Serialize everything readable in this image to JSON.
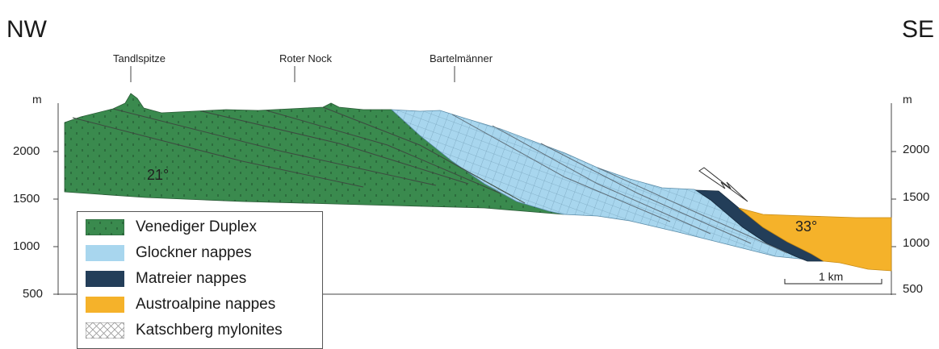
{
  "directions": {
    "left": "NW",
    "right": "SE"
  },
  "peaks": [
    {
      "label": "Tandlspitze"
    },
    {
      "label": "Roter Nock"
    },
    {
      "label": "Bartelmänner"
    }
  ],
  "axes": {
    "left": {
      "unit": "m",
      "ticks": [
        "2000",
        "1500",
        "1000",
        "500"
      ]
    },
    "right": {
      "unit": "m",
      "ticks": [
        "2000",
        "1500",
        "1000",
        "500"
      ]
    }
  },
  "dips": {
    "venediger": "21°",
    "austroalpine": "33°"
  },
  "scale_bar": {
    "label": "1 km"
  },
  "legend": [
    {
      "label": "Venediger Duplex",
      "color": "#3a8a4e",
      "pattern": "dots"
    },
    {
      "label": "Glockner nappes",
      "color": "#a8d6ee",
      "pattern": "none"
    },
    {
      "label": "Matreier nappes",
      "color": "#233e59",
      "pattern": "none"
    },
    {
      "label": "Austroalpine nappes",
      "color": "#f5b22a",
      "pattern": "none"
    },
    {
      "label": "Katschberg mylonites",
      "color": "#ffffff",
      "pattern": "crosshatch"
    }
  ]
}
